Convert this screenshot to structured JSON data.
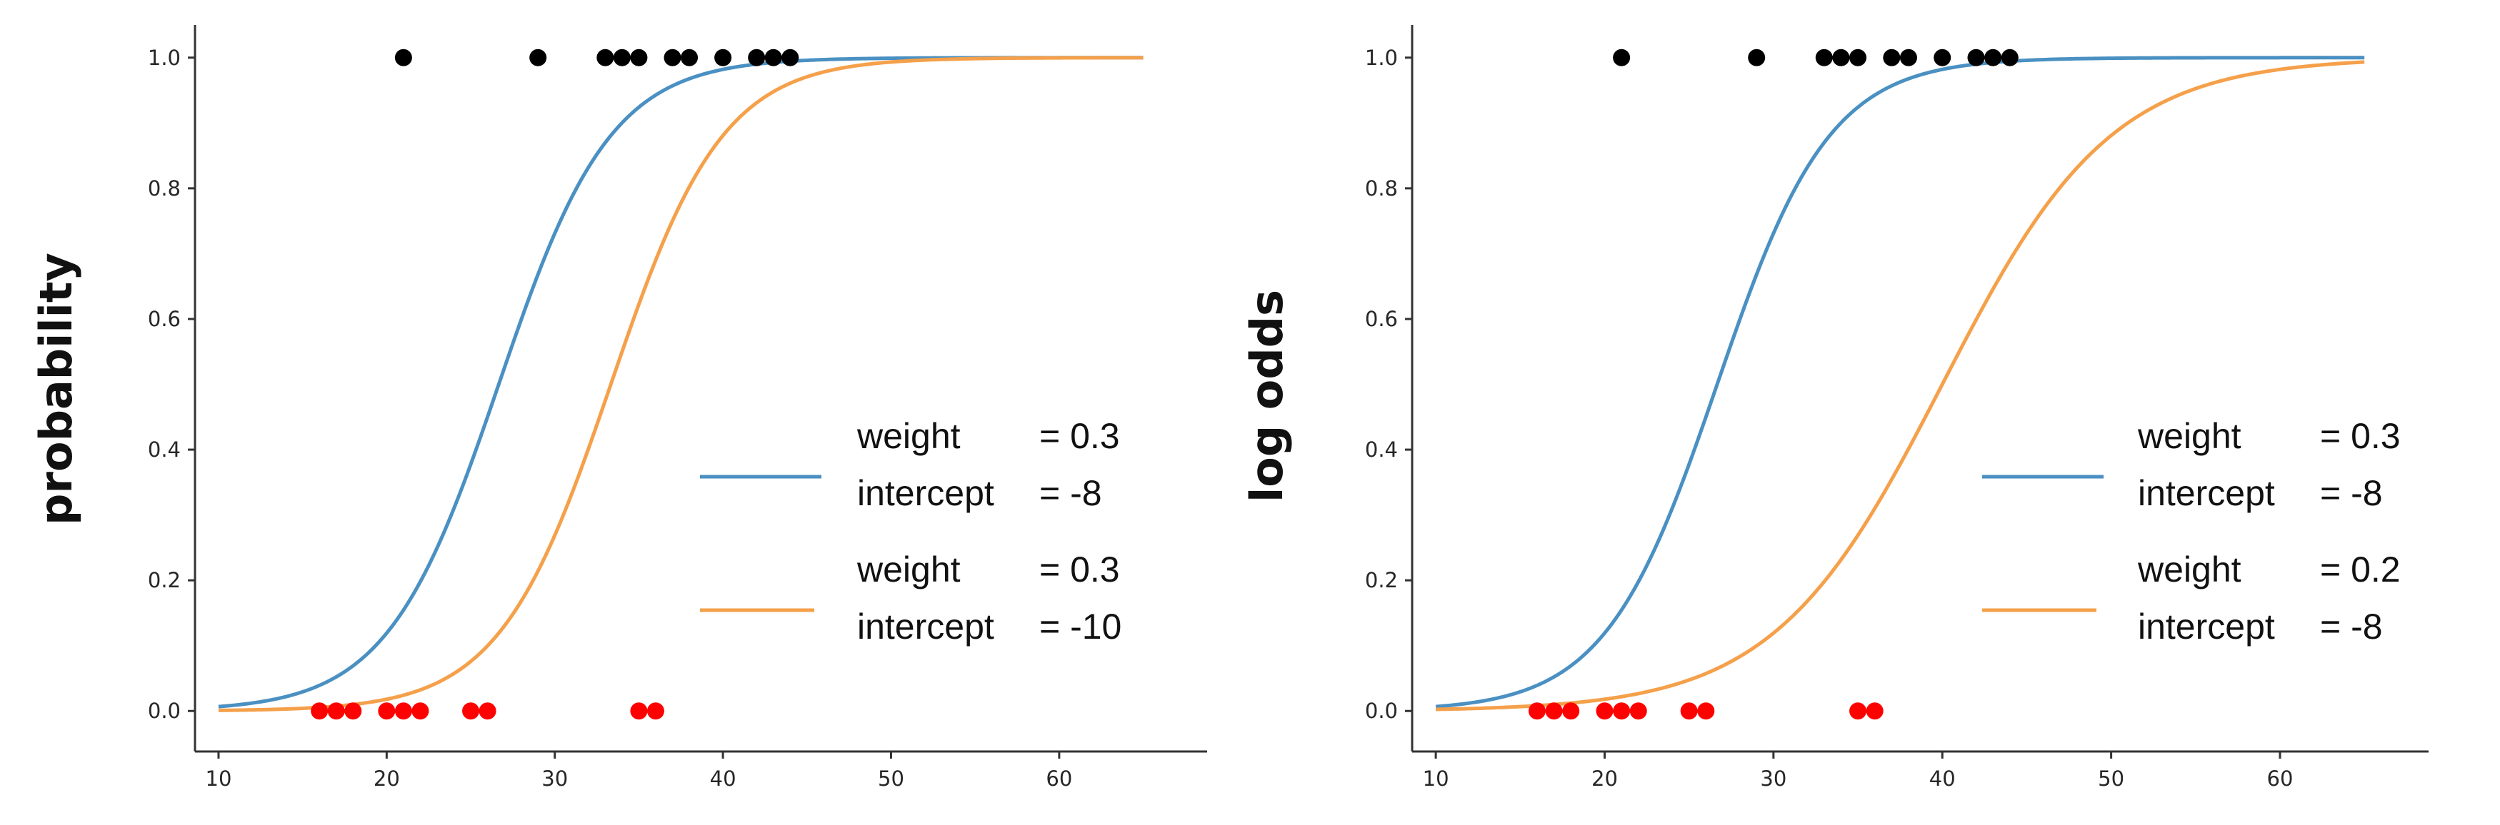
{
  "chart_data": [
    {
      "type": "line",
      "ylabel": "probability",
      "xlabel": "",
      "xlim": [
        8.6,
        68.8
      ],
      "ylim": [
        -0.062,
        1.05
      ],
      "xticks": [
        10,
        20,
        30,
        40,
        50,
        60
      ],
      "yticks": [
        0.0,
        0.2,
        0.4,
        0.6,
        0.8,
        1.0
      ],
      "series": [
        {
          "legend_lines": [
            [
              "weight",
              "= 0.3"
            ],
            [
              "intercept",
              "= -8"
            ]
          ],
          "weight": 0.3,
          "intercept": -8,
          "x_range": [
            10,
            65
          ],
          "color": "#4a90c2"
        },
        {
          "legend_lines": [
            [
              "weight",
              "= 0.3"
            ],
            [
              "intercept",
              "= -10"
            ]
          ],
          "weight": 0.3,
          "intercept": -10,
          "x_range": [
            10,
            65
          ],
          "color": "#f5a04a"
        }
      ],
      "points": [
        {
          "x": 21,
          "y": 1,
          "color": "#000000"
        },
        {
          "x": 29,
          "y": 1,
          "color": "#000000"
        },
        {
          "x": 33,
          "y": 1,
          "color": "#000000"
        },
        {
          "x": 34,
          "y": 1,
          "color": "#000000"
        },
        {
          "x": 35,
          "y": 1,
          "color": "#000000"
        },
        {
          "x": 37,
          "y": 1,
          "color": "#000000"
        },
        {
          "x": 38,
          "y": 1,
          "color": "#000000"
        },
        {
          "x": 40,
          "y": 1,
          "color": "#000000"
        },
        {
          "x": 42,
          "y": 1,
          "color": "#000000"
        },
        {
          "x": 43,
          "y": 1,
          "color": "#000000"
        },
        {
          "x": 44,
          "y": 1,
          "color": "#000000"
        },
        {
          "x": 16,
          "y": 0,
          "color": "#ff0000"
        },
        {
          "x": 17,
          "y": 0,
          "color": "#ff0000"
        },
        {
          "x": 18,
          "y": 0,
          "color": "#ff0000"
        },
        {
          "x": 20,
          "y": 0,
          "color": "#ff0000"
        },
        {
          "x": 21,
          "y": 0,
          "color": "#ff0000"
        },
        {
          "x": 22,
          "y": 0,
          "color": "#ff0000"
        },
        {
          "x": 25,
          "y": 0,
          "color": "#ff0000"
        },
        {
          "x": 26,
          "y": 0,
          "color": "#ff0000"
        },
        {
          "x": 35,
          "y": 0,
          "color": "#ff0000"
        },
        {
          "x": 36,
          "y": 0,
          "color": "#ff0000"
        }
      ],
      "legend_placement": "lower-right",
      "grid": false
    },
    {
      "type": "line",
      "ylabel": "log odds",
      "xlabel": "",
      "xlim": [
        8.6,
        68.8
      ],
      "ylim": [
        -0.062,
        1.05
      ],
      "xticks": [
        10,
        20,
        30,
        40,
        50,
        60
      ],
      "yticks": [
        0.0,
        0.2,
        0.4,
        0.6,
        0.8,
        1.0
      ],
      "series": [
        {
          "legend_lines": [
            [
              "weight",
              "= 0.3"
            ],
            [
              "intercept",
              "= -8"
            ]
          ],
          "weight": 0.3,
          "intercept": -8,
          "x_range": [
            10,
            65
          ],
          "color": "#4a90c2"
        },
        {
          "legend_lines": [
            [
              "weight",
              "= 0.2"
            ],
            [
              "intercept",
              "= -8"
            ]
          ],
          "weight": 0.2,
          "intercept": -8,
          "x_range": [
            10,
            65
          ],
          "color": "#f5a04a"
        }
      ],
      "points": [
        {
          "x": 21,
          "y": 1,
          "color": "#000000"
        },
        {
          "x": 29,
          "y": 1,
          "color": "#000000"
        },
        {
          "x": 33,
          "y": 1,
          "color": "#000000"
        },
        {
          "x": 34,
          "y": 1,
          "color": "#000000"
        },
        {
          "x": 35,
          "y": 1,
          "color": "#000000"
        },
        {
          "x": 37,
          "y": 1,
          "color": "#000000"
        },
        {
          "x": 38,
          "y": 1,
          "color": "#000000"
        },
        {
          "x": 40,
          "y": 1,
          "color": "#000000"
        },
        {
          "x": 42,
          "y": 1,
          "color": "#000000"
        },
        {
          "x": 43,
          "y": 1,
          "color": "#000000"
        },
        {
          "x": 44,
          "y": 1,
          "color": "#000000"
        },
        {
          "x": 16,
          "y": 0,
          "color": "#ff0000"
        },
        {
          "x": 17,
          "y": 0,
          "color": "#ff0000"
        },
        {
          "x": 18,
          "y": 0,
          "color": "#ff0000"
        },
        {
          "x": 20,
          "y": 0,
          "color": "#ff0000"
        },
        {
          "x": 21,
          "y": 0,
          "color": "#ff0000"
        },
        {
          "x": 22,
          "y": 0,
          "color": "#ff0000"
        },
        {
          "x": 25,
          "y": 0,
          "color": "#ff0000"
        },
        {
          "x": 26,
          "y": 0,
          "color": "#ff0000"
        },
        {
          "x": 35,
          "y": 0,
          "color": "#ff0000"
        },
        {
          "x": 36,
          "y": 0,
          "color": "#ff0000"
        }
      ],
      "legend_placement": "lower-right",
      "grid": false
    }
  ]
}
